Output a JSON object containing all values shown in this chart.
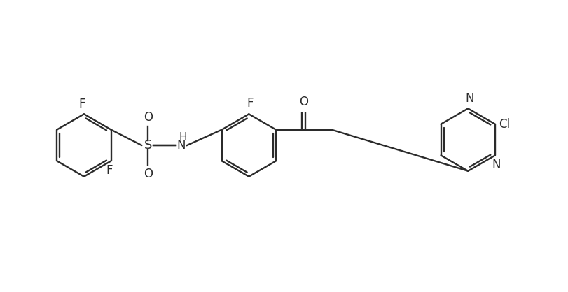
{
  "background_color": "#ffffff",
  "line_color": "#2b2b2b",
  "line_width": 1.7,
  "font_size": 12,
  "fig_width": 8.11,
  "fig_height": 4.18,
  "dpi": 100,
  "xlim": [
    0,
    811
  ],
  "ylim": [
    0,
    418
  ]
}
